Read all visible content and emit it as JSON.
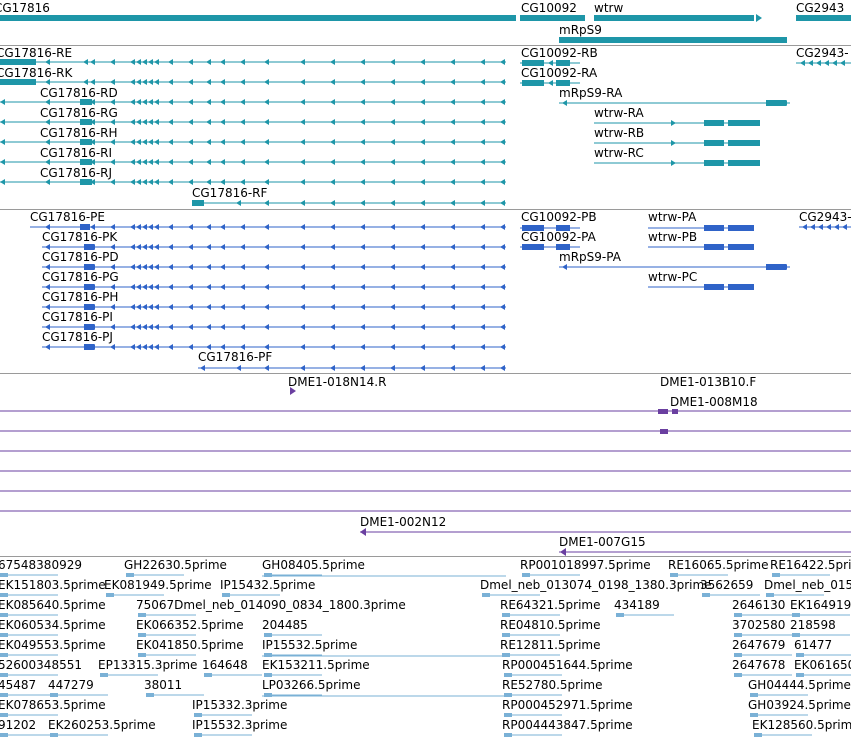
{
  "colors": {
    "gene": "#1e96a8",
    "transcript": "#1e96a8",
    "protein": "#2f63c8",
    "clone": "#6a3fa0",
    "est": "#7ab1d6",
    "border": "#9a9a9a"
  },
  "tracks": {
    "genes": [
      {
        "label": "CG17816",
        "strand": "-"
      },
      {
        "label": "CG10092",
        "strand": "-"
      },
      {
        "label": "wtrw",
        "strand": "+"
      },
      {
        "label": "CG2943",
        "strand": "-"
      },
      {
        "label": "mRpS9",
        "strand": "+"
      }
    ],
    "transcripts": [
      "CG17816-RE",
      "CG17816-RK",
      "CG17816-RD",
      "CG17816-RG",
      "CG17816-RH",
      "CG17816-RI",
      "CG17816-RJ",
      "CG17816-RF",
      "CG10092-RB",
      "CG10092-RA",
      "mRpS9-RA",
      "wtrw-RA",
      "wtrw-RB",
      "wtrw-RC",
      "CG2943-"
    ],
    "proteins": [
      "CG17816-PE",
      "CG17816-PK",
      "CG17816-PD",
      "CG17816-PG",
      "CG17816-PH",
      "CG17816-PI",
      "CG17816-PJ",
      "CG17816-PF",
      "CG10092-PB",
      "CG10092-PA",
      "mRpS9-PA",
      "wtrw-PA",
      "wtrw-PB",
      "wtrw-PC",
      "CG2943-"
    ],
    "clones": [
      "DME1-018N14.R",
      "DME1-013B10.F",
      "DME1-008M18",
      "DME1-002N12",
      "DME1-007G15"
    ],
    "ests": [
      "67548380929",
      "GH22630.5prime",
      "GH08405.5prime",
      "RP001018997.5prime",
      "RE16065.5prime",
      "RE16422.5prime",
      "EK151803.5prime",
      "EK081949.5prime",
      "IP15432.5prime",
      "Dmel_neb_013074_0198_1380.3prime",
      "3562659",
      "Dmel_neb_015",
      "EK085640.5prime",
      "75067Dmel_neb_014090_0834_1800.3prime",
      "RE64321.5prime",
      "434189",
      "2646130",
      "EK164919",
      "EK060534.5prime",
      "EK066352.5prime",
      "204485",
      "RE04810.5prime",
      "3702580",
      "218598",
      "EK049553.5prime",
      "EK041850.5prime",
      "IP15532.5prime",
      "RE12811.5prime",
      "2647679",
      "61477",
      "52600348551",
      "EP13315.3prime",
      "164648",
      "EK153211.5prime",
      "RP000451644.5prime",
      "2647678",
      "EK061650",
      "45487",
      "447279",
      "38011",
      "LP03266.5prime",
      "RE52780.5prime",
      "GH04444.5prime",
      "EK078653.5prime",
      "IP15332.3prime",
      "RP000452971.5prime",
      "GH03924.5prime",
      "91202",
      "EK260253.5prime",
      "IP15532.3prime",
      "RP004443847.5prime",
      "EK128560.5prime"
    ]
  }
}
